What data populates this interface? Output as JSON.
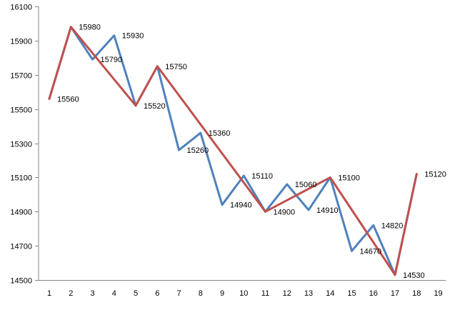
{
  "chart_data": {
    "type": "line",
    "title": "",
    "xlabel": "",
    "ylabel": "",
    "x": [
      1,
      2,
      3,
      4,
      5,
      6,
      7,
      8,
      9,
      10,
      11,
      12,
      13,
      14,
      15,
      16,
      17,
      18,
      19
    ],
    "xlim": [
      1,
      19
    ],
    "ylim": [
      14500,
      16100
    ],
    "yticks": [
      14500,
      14700,
      14900,
      15100,
      15300,
      15500,
      15700,
      15900,
      16100
    ],
    "grid": false,
    "legend": "none",
    "series": [
      {
        "color": "#4F81BD",
        "points": [
          [
            1,
            15560
          ],
          [
            2,
            15980
          ],
          [
            3,
            15790
          ],
          [
            4,
            15930
          ],
          [
            5,
            15520
          ],
          [
            6,
            15750
          ],
          [
            7,
            15260
          ],
          [
            8,
            15360
          ],
          [
            9,
            14940
          ],
          [
            10,
            15110
          ],
          [
            11,
            14900
          ],
          [
            12,
            15060
          ],
          [
            13,
            14910
          ],
          [
            14,
            15100
          ],
          [
            15,
            14670
          ],
          [
            16,
            14820
          ],
          [
            17,
            14530
          ],
          [
            18,
            15120
          ]
        ]
      },
      {
        "color": "#C0504D",
        "points": [
          [
            1,
            15560
          ],
          [
            2,
            15980
          ],
          [
            5,
            15520
          ],
          [
            6,
            15750
          ],
          [
            11,
            14900
          ],
          [
            14,
            15100
          ],
          [
            17,
            14530
          ],
          [
            18,
            15120
          ]
        ]
      }
    ],
    "data_labels": [
      {
        "x": 1,
        "y": 15560,
        "text": "15560"
      },
      {
        "x": 2,
        "y": 15980,
        "text": "15980"
      },
      {
        "x": 3,
        "y": 15790,
        "text": "15790"
      },
      {
        "x": 4,
        "y": 15930,
        "text": "15930"
      },
      {
        "x": 5,
        "y": 15520,
        "text": "15520"
      },
      {
        "x": 6,
        "y": 15750,
        "text": "15750"
      },
      {
        "x": 7,
        "y": 15260,
        "text": "15260"
      },
      {
        "x": 8,
        "y": 15360,
        "text": "15360"
      },
      {
        "x": 9,
        "y": 14940,
        "text": "14940"
      },
      {
        "x": 10,
        "y": 15110,
        "text": "15110"
      },
      {
        "x": 11,
        "y": 14900,
        "text": "14900"
      },
      {
        "x": 12,
        "y": 15060,
        "text": "15060"
      },
      {
        "x": 13,
        "y": 14910,
        "text": "14910"
      },
      {
        "x": 14,
        "y": 15100,
        "text": "15100"
      },
      {
        "x": 15,
        "y": 14670,
        "text": "14670"
      },
      {
        "x": 16,
        "y": 14820,
        "text": "14820"
      },
      {
        "x": 17,
        "y": 14530,
        "text": "14530"
      },
      {
        "x": 18,
        "y": 15120,
        "text": "15120"
      }
    ]
  }
}
